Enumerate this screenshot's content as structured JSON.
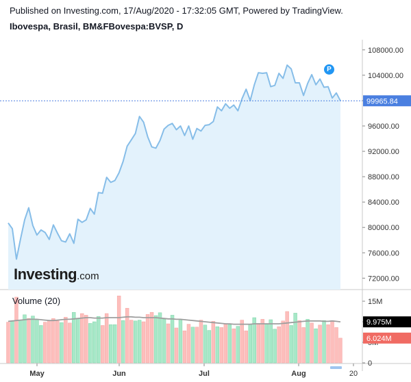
{
  "header": {
    "published": "Published on Investing.com, 17/Aug/2020 - 17:32:05 GMT, Powered by TradingView.",
    "symbol": "Ibovespa, Brasil, BM&FBovespa:BVSP, D"
  },
  "logo": {
    "main": "Investing",
    "suffix": ".com"
  },
  "marker": {
    "label": "P",
    "color": "#2196f3"
  },
  "chart_data": {
    "type": "area",
    "price_axis": {
      "ticks": [
        "108000.00",
        "104000.00",
        "100000.00",
        "96000.00",
        "92000.00",
        "88000.00",
        "84000.00",
        "80000.00",
        "76000.00",
        "72000.00"
      ],
      "tick_values": [
        108000,
        104000,
        100000,
        96000,
        92000,
        88000,
        84000,
        80000,
        76000,
        72000
      ],
      "range": [
        70200,
        109600
      ]
    },
    "last_price": {
      "label": "99965.84",
      "value": 99965.84
    },
    "x_axis": {
      "labels": [
        "May",
        "Jun",
        "Jul",
        "Aug",
        "20"
      ]
    },
    "price_series": [
      80700,
      79800,
      75000,
      78200,
      81200,
      83100,
      80300,
      78800,
      79600,
      79200,
      78100,
      80400,
      79100,
      77900,
      77700,
      79000,
      77500,
      81300,
      80800,
      81200,
      83000,
      82100,
      85500,
      85400,
      87900,
      87100,
      87400,
      88600,
      90400,
      92800,
      93800,
      94800,
      97500,
      96600,
      94300,
      92700,
      92500,
      93700,
      95500,
      96100,
      96400,
      95400,
      96000,
      94500,
      96000,
      93900,
      95600,
      95200,
      96100,
      96200,
      96700,
      99000,
      98400,
      99500,
      98800,
      99300,
      98400,
      100300,
      101800,
      100000,
      102500,
      104400,
      104300,
      104400,
      102200,
      102400,
      104300,
      103500,
      105600,
      105000,
      102800,
      102800,
      100800,
      102700,
      104100,
      102500,
      103400,
      102100,
      102200,
      100400,
      101200,
      99965.84
    ],
    "volume": {
      "title": "Volume (20)",
      "axis_ticks": [
        "15M",
        "10M",
        "5M",
        "0"
      ],
      "tick_values": [
        15,
        10,
        5,
        0
      ],
      "unit": "M",
      "ma_label": "9.975M",
      "ma_value": 9.975,
      "last_label": "6.024M",
      "last_value": 6.024,
      "range": [
        0,
        16.5
      ],
      "bars": [
        9.9,
        10.2,
        16,
        10.4,
        11.7,
        10.8,
        11.4,
        10.5,
        9.1,
        9.9,
        10.3,
        10.8,
        10.2,
        9.8,
        11.1,
        9.7,
        12.3,
        10.8,
        12,
        11.6,
        9.6,
        10,
        11.3,
        9.1,
        12,
        9.3,
        9.3,
        16.3,
        10.3,
        13.3,
        10.4,
        10.2,
        10.4,
        10,
        11.8,
        12.3,
        11.5,
        12.2,
        10.6,
        9.5,
        11.6,
        8.5,
        10.4,
        7.8,
        9.4,
        8.7,
        8.7,
        10.4,
        9.2,
        7.9,
        10.1,
        8.8,
        8.6,
        9.5,
        9.3,
        8.3,
        8.9,
        10.4,
        7.8,
        9.4,
        11,
        9.6,
        10.6,
        9.4,
        10.5,
        8.2,
        8.8,
        10.2,
        12.5,
        9.1,
        12.1,
        10.3,
        8.6,
        10.6,
        9.7,
        8.3,
        9.2,
        10.3,
        9.3,
        10.3,
        8.6,
        6.024
      ],
      "bar_up": [
        false,
        true,
        false,
        true,
        true,
        false,
        true,
        true,
        true,
        false,
        false,
        false,
        false,
        true,
        false,
        false,
        true,
        true,
        false,
        false,
        true,
        true,
        true,
        false,
        false,
        true,
        true,
        false,
        true,
        false,
        false,
        true,
        true,
        false,
        false,
        false,
        true,
        true,
        true,
        false,
        true,
        false,
        true,
        false,
        false,
        true,
        false,
        false,
        true,
        true,
        false,
        true,
        false,
        false,
        true,
        false,
        true,
        false,
        false,
        true,
        true,
        false,
        false,
        true,
        true,
        true,
        false,
        false,
        false,
        true,
        true,
        false,
        false,
        true,
        false,
        true,
        false,
        true,
        false,
        false,
        false,
        false
      ],
      "ma": [
        10.1,
        10.2,
        10.3,
        10.4,
        10.5,
        10.6,
        10.6,
        10.6,
        10.5,
        10.4,
        10.3,
        10.3,
        10.4,
        10.5,
        10.6,
        10.6,
        10.7,
        10.8,
        10.9,
        11.0,
        11.0,
        10.9,
        10.9,
        10.9,
        11.0,
        11.0,
        11.0,
        11.0,
        11.1,
        11.2,
        11.2,
        11.1,
        11.1,
        11.0,
        11.0,
        11.0,
        11.0,
        10.9,
        10.8,
        10.7,
        10.7,
        10.6,
        10.6,
        10.5,
        10.4,
        10.3,
        10.2,
        10.1,
        10.0,
        9.9,
        9.8,
        9.7,
        9.6,
        9.5,
        9.5,
        9.4,
        9.4,
        9.4,
        9.4,
        9.4,
        9.5,
        9.5,
        9.5,
        9.5,
        9.5,
        9.5,
        9.5,
        9.6,
        9.7,
        9.8,
        9.9,
        10.0,
        10.1,
        10.2,
        10.2,
        10.2,
        10.2,
        10.1,
        10.1,
        10.2,
        10.1,
        9.975
      ]
    },
    "colors": {
      "line": "#86bde8",
      "fill": "#e3f2fc",
      "price_tag": "#4a7fe0",
      "up": "#a7e8c8",
      "down": "#fdbebc",
      "ma_line": "#9e9e9e",
      "ma_tag": "#000000",
      "last_tag": "#f06b63"
    },
    "grid": false,
    "legend": "none"
  }
}
